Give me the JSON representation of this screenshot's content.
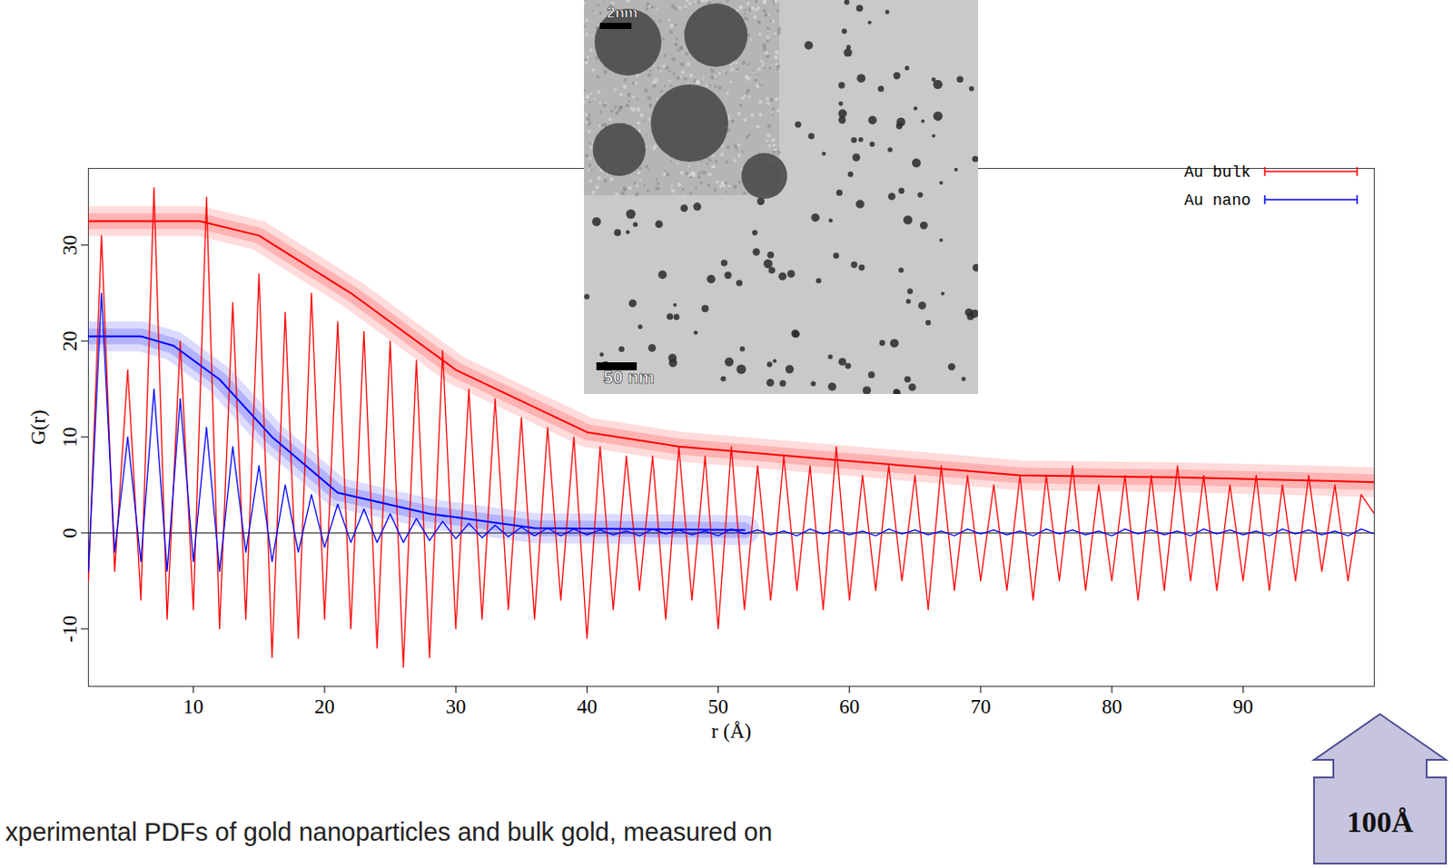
{
  "chart_data": {
    "type": "line",
    "x_label": "r (Å)",
    "y_label": "G(r)",
    "xlim": [
      2,
      100
    ],
    "ylim": [
      -16,
      38
    ],
    "xticks": [
      10,
      20,
      30,
      40,
      50,
      60,
      70,
      80,
      90
    ],
    "yticks": [
      -10,
      0,
      10,
      20,
      30
    ],
    "grid": false,
    "legend": "top-right",
    "baseline": 0,
    "x": [
      2,
      3,
      4,
      5,
      6,
      7,
      8,
      9,
      10,
      11,
      12,
      13,
      14,
      15,
      16,
      17,
      18,
      19,
      20,
      21,
      22,
      23,
      24,
      25,
      26,
      27,
      28,
      29,
      30,
      31,
      32,
      33,
      34,
      35,
      36,
      37,
      38,
      39,
      40,
      41,
      42,
      43,
      44,
      45,
      46,
      47,
      48,
      49,
      50,
      51,
      52,
      53,
      54,
      55,
      56,
      57,
      58,
      59,
      60,
      61,
      62,
      63,
      64,
      65,
      66,
      67,
      68,
      69,
      70,
      71,
      72,
      73,
      74,
      75,
      76,
      77,
      78,
      79,
      80,
      81,
      82,
      83,
      84,
      85,
      86,
      87,
      88,
      89,
      90,
      91,
      92,
      93,
      94,
      95,
      96,
      97,
      98,
      99,
      100
    ],
    "series": [
      {
        "name": "Au bulk",
        "color": "#ff0000",
        "values": [
          -5,
          31,
          -4,
          17,
          -7,
          36,
          -9,
          20,
          -8,
          35,
          -10,
          24,
          -9,
          27,
          -13,
          23,
          -11,
          25,
          -9,
          22,
          -10,
          21,
          -12,
          20,
          -14,
          18,
          -13,
          19,
          -10,
          15,
          -9,
          14,
          -8,
          12,
          -9,
          11,
          -7,
          10,
          -11,
          9,
          -8,
          8,
          -6,
          8,
          -9,
          9,
          -7,
          8,
          -10,
          9,
          -8,
          7,
          -7,
          8,
          -6,
          7,
          -8,
          9,
          -7,
          6,
          -6,
          7,
          -5,
          6,
          -8,
          7,
          -6,
          6,
          -5,
          5,
          -6,
          6,
          -7,
          6,
          -5,
          7,
          -6,
          5,
          -5,
          6,
          -7,
          6,
          -6,
          7,
          -5,
          6,
          -6,
          5,
          -5,
          6,
          -6,
          5,
          -5,
          6,
          -4,
          5,
          -5,
          4,
          2
        ]
      },
      {
        "name": "Au nano",
        "color": "#0000ff",
        "values": [
          -4,
          25,
          -2,
          10,
          -3,
          15,
          -4,
          14,
          -3,
          11,
          -4,
          9,
          -2,
          7,
          -3,
          5,
          -2,
          4,
          -1.5,
          3,
          -1,
          2.5,
          -1,
          2,
          -1,
          1.5,
          -0.8,
          1.2,
          -0.6,
          1,
          -0.5,
          0.8,
          -0.4,
          0.6,
          -0.3,
          0.5,
          -0.3,
          0.4,
          -0.2,
          0.3,
          -0.2,
          0.2,
          -0.3,
          0.4,
          -0.1,
          0.3,
          -0.2,
          0.2,
          -0.3,
          0.4,
          -0.1,
          0.3,
          -0.2,
          0.2,
          -0.3,
          0.4,
          -0.1,
          0.3,
          -0.2,
          0.2,
          -0.3,
          0.4,
          -0.1,
          0.3,
          -0.2,
          0.2,
          -0.3,
          0.4,
          -0.1,
          0.3,
          -0.2,
          0.2,
          -0.3,
          0.4,
          -0.1,
          0.3,
          -0.2,
          0.2,
          -0.3,
          0.4,
          -0.1,
          0.3,
          -0.2,
          0.2,
          -0.3,
          0.4,
          -0.1,
          0.3,
          -0.2,
          0.2,
          -0.3,
          0.4,
          -0.1,
          0.3,
          -0.2,
          0.2,
          -0.3,
          0.4,
          -0.1
        ]
      }
    ],
    "envelopes": [
      {
        "color": "#ff0000",
        "x": [
          2,
          10.5,
          15,
          22,
          30,
          40,
          47,
          60,
          73,
          85,
          100
        ],
        "values": [
          32.5,
          32.5,
          31,
          25,
          17,
          10.5,
          9,
          7.5,
          6,
          5.8,
          5.3
        ]
      },
      {
        "color": "#0000ff",
        "x": [
          2,
          6,
          8.5,
          12,
          16,
          21,
          28,
          36,
          52
        ],
        "values": [
          20.5,
          20.5,
          19.5,
          16,
          10,
          4.2,
          2,
          0.5,
          0.3
        ]
      }
    ],
    "inset_scale_bars": [
      "2nm",
      "50 nm"
    ],
    "caption": "xperimental PDFs of gold nanoparticles and bulk gold, measured on",
    "arrow_label": "100Å"
  }
}
